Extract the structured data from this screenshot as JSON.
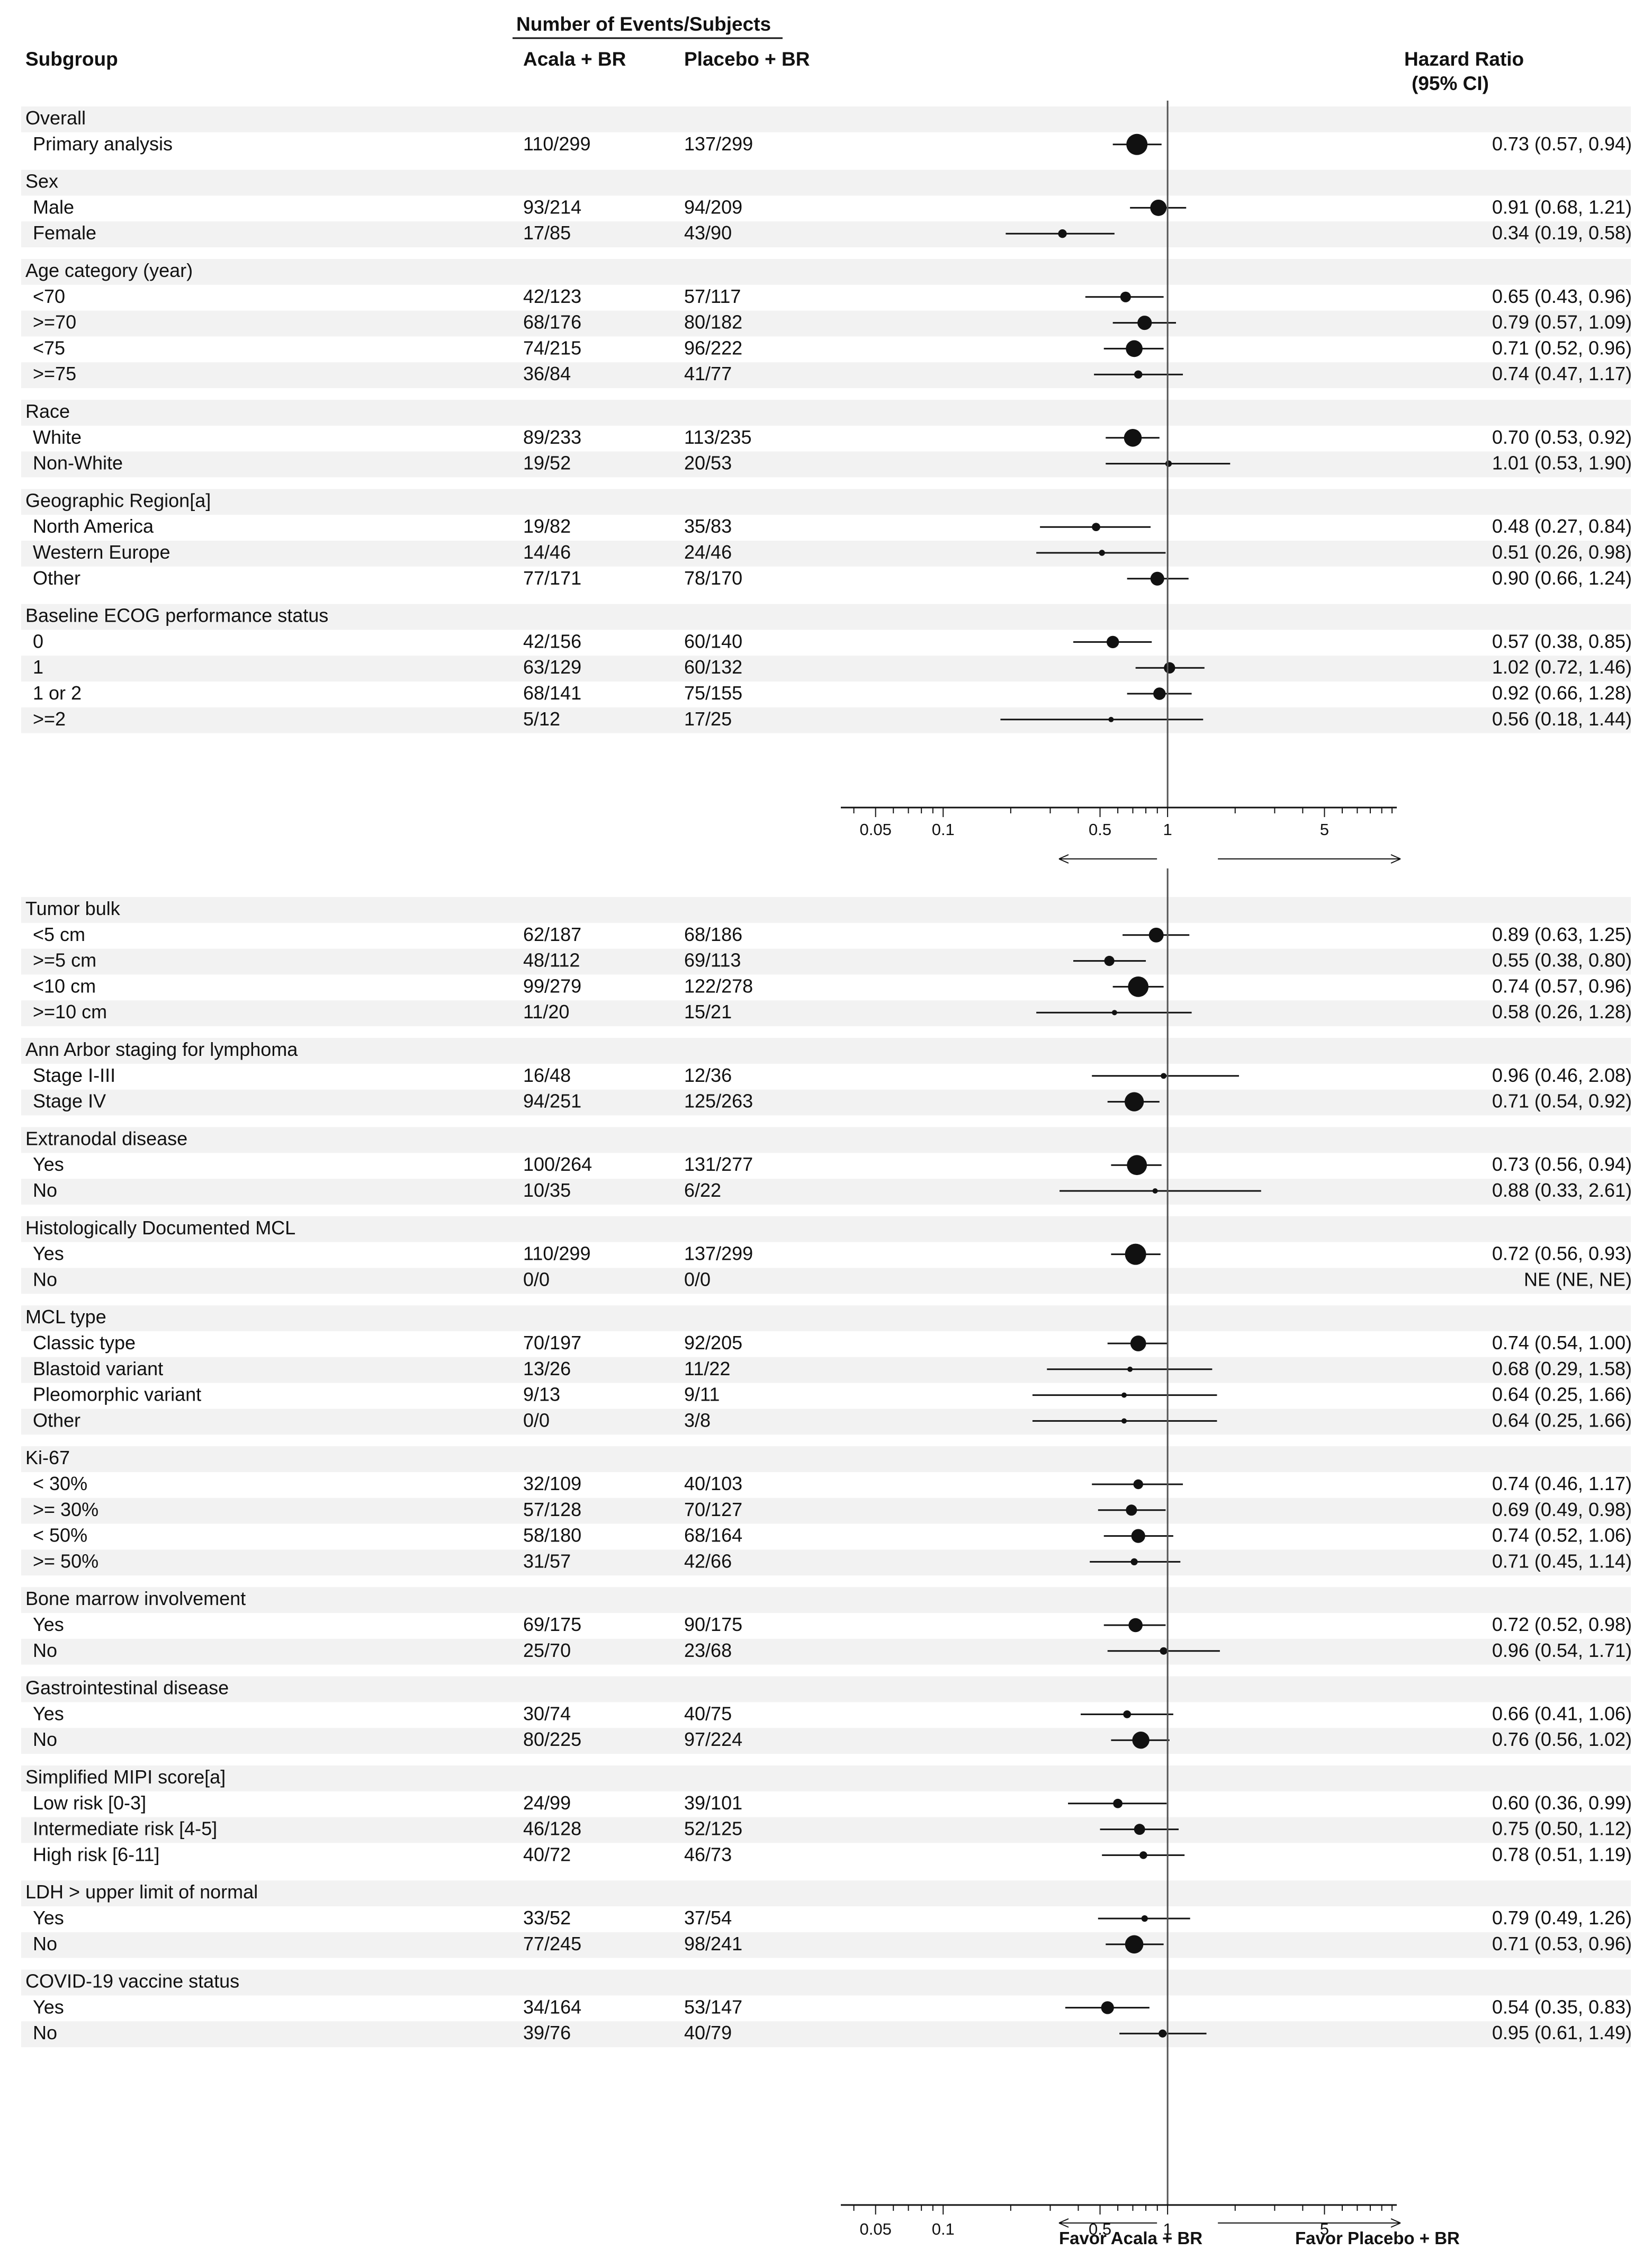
{
  "headers": {
    "subgroup": "Subgroup",
    "events": "Number of Events/Subjects",
    "arm1": "Acala + BR",
    "arm2": "Placebo + BR",
    "hr": "Hazard Ratio",
    "ci": "(95% CI)"
  },
  "favor": {
    "left": "Favor Acala + BR",
    "right": "Favor Placebo + BR"
  },
  "chart_data": {
    "type": "forest",
    "x_scale": "log",
    "xlim": [
      0.035,
      10.5
    ],
    "reference_line": 1,
    "tick_values": [
      0.05,
      0.1,
      0.5,
      1,
      5
    ],
    "tick_labels": [
      "0.05",
      "0.1",
      "0.5",
      "1",
      "5"
    ],
    "panels": [
      {
        "groups": [
          {
            "label": "Overall",
            "rows": [
              {
                "label": "Primary analysis",
                "arm1": "110/299",
                "arm2": "137/299",
                "hr": 0.73,
                "lo": 0.57,
                "hi": 0.94,
                "text": "0.73 (0.57, 0.94)"
              }
            ]
          },
          {
            "label": "Sex",
            "rows": [
              {
                "label": "Male",
                "arm1": "93/214",
                "arm2": "94/209",
                "hr": 0.91,
                "lo": 0.68,
                "hi": 1.21,
                "text": "0.91 (0.68, 1.21)"
              },
              {
                "label": "Female",
                "arm1": "17/85",
                "arm2": "43/90",
                "hr": 0.34,
                "lo": 0.19,
                "hi": 0.58,
                "text": "0.34 (0.19, 0.58)"
              }
            ]
          },
          {
            "label": "Age category (year)",
            "rows": [
              {
                "label": "<70",
                "arm1": "42/123",
                "arm2": "57/117",
                "hr": 0.65,
                "lo": 0.43,
                "hi": 0.96,
                "text": "0.65 (0.43, 0.96)"
              },
              {
                "label": ">=70",
                "arm1": "68/176",
                "arm2": "80/182",
                "hr": 0.79,
                "lo": 0.57,
                "hi": 1.09,
                "text": "0.79 (0.57, 1.09)"
              },
              {
                "label": "<75",
                "arm1": "74/215",
                "arm2": "96/222",
                "hr": 0.71,
                "lo": 0.52,
                "hi": 0.96,
                "text": "0.71 (0.52, 0.96)"
              },
              {
                "label": ">=75",
                "arm1": "36/84",
                "arm2": "41/77",
                "hr": 0.74,
                "lo": 0.47,
                "hi": 1.17,
                "text": "0.74 (0.47, 1.17)"
              }
            ]
          },
          {
            "label": "Race",
            "rows": [
              {
                "label": "White",
                "arm1": "89/233",
                "arm2": "113/235",
                "hr": 0.7,
                "lo": 0.53,
                "hi": 0.92,
                "text": "0.70 (0.53, 0.92)"
              },
              {
                "label": "Non-White",
                "arm1": "19/52",
                "arm2": "20/53",
                "hr": 1.01,
                "lo": 0.53,
                "hi": 1.9,
                "text": "1.01 (0.53, 1.90)"
              }
            ]
          },
          {
            "label": "Geographic Region[a]",
            "rows": [
              {
                "label": "North America",
                "arm1": "19/82",
                "arm2": "35/83",
                "hr": 0.48,
                "lo": 0.27,
                "hi": 0.84,
                "text": "0.48 (0.27, 0.84)"
              },
              {
                "label": "Western Europe",
                "arm1": "14/46",
                "arm2": "24/46",
                "hr": 0.51,
                "lo": 0.26,
                "hi": 0.98,
                "text": "0.51 (0.26, 0.98)"
              },
              {
                "label": "Other",
                "arm1": "77/171",
                "arm2": "78/170",
                "hr": 0.9,
                "lo": 0.66,
                "hi": 1.24,
                "text": "0.90 (0.66, 1.24)"
              }
            ]
          },
          {
            "label": "Baseline ECOG performance status",
            "rows": [
              {
                "label": "0",
                "arm1": "42/156",
                "arm2": "60/140",
                "hr": 0.57,
                "lo": 0.38,
                "hi": 0.85,
                "text": "0.57 (0.38, 0.85)"
              },
              {
                "label": "1",
                "arm1": "63/129",
                "arm2": "60/132",
                "hr": 1.02,
                "lo": 0.72,
                "hi": 1.46,
                "text": "1.02 (0.72, 1.46)"
              },
              {
                "label": "1 or 2",
                "arm1": "68/141",
                "arm2": "75/155",
                "hr": 0.92,
                "lo": 0.66,
                "hi": 1.28,
                "text": "0.92 (0.66, 1.28)"
              },
              {
                "label": ">=2",
                "arm1": "5/12",
                "arm2": "17/25",
                "hr": 0.56,
                "lo": 0.18,
                "hi": 1.44,
                "text": "0.56 (0.18, 1.44)"
              }
            ]
          }
        ]
      },
      {
        "groups": [
          {
            "label": "Tumor bulk",
            "rows": [
              {
                "label": "<5 cm",
                "arm1": "62/187",
                "arm2": "68/186",
                "hr": 0.89,
                "lo": 0.63,
                "hi": 1.25,
                "text": "0.89 (0.63, 1.25)"
              },
              {
                "label": ">=5 cm",
                "arm1": "48/112",
                "arm2": "69/113",
                "hr": 0.55,
                "lo": 0.38,
                "hi": 0.8,
                "text": "0.55 (0.38, 0.80)"
              },
              {
                "label": "<10 cm",
                "arm1": "99/279",
                "arm2": "122/278",
                "hr": 0.74,
                "lo": 0.57,
                "hi": 0.96,
                "text": "0.74 (0.57, 0.96)"
              },
              {
                "label": ">=10 cm",
                "arm1": "11/20",
                "arm2": "15/21",
                "hr": 0.58,
                "lo": 0.26,
                "hi": 1.28,
                "text": "0.58 (0.26, 1.28)"
              }
            ]
          },
          {
            "label": "Ann Arbor staging for lymphoma",
            "rows": [
              {
                "label": "Stage I-III",
                "arm1": "16/48",
                "arm2": "12/36",
                "hr": 0.96,
                "lo": 0.46,
                "hi": 2.08,
                "text": "0.96 (0.46, 2.08)"
              },
              {
                "label": "Stage IV",
                "arm1": "94/251",
                "arm2": "125/263",
                "hr": 0.71,
                "lo": 0.54,
                "hi": 0.92,
                "text": "0.71 (0.54, 0.92)"
              }
            ]
          },
          {
            "label": "Extranodal disease",
            "rows": [
              {
                "label": "Yes",
                "arm1": "100/264",
                "arm2": "131/277",
                "hr": 0.73,
                "lo": 0.56,
                "hi": 0.94,
                "text": "0.73 (0.56, 0.94)"
              },
              {
                "label": "No",
                "arm1": "10/35",
                "arm2": "6/22",
                "hr": 0.88,
                "lo": 0.33,
                "hi": 2.61,
                "text": "0.88 (0.33, 2.61)"
              }
            ]
          },
          {
            "label": "Histologically Documented MCL",
            "rows": [
              {
                "label": "Yes",
                "arm1": "110/299",
                "arm2": "137/299",
                "hr": 0.72,
                "lo": 0.56,
                "hi": 0.93,
                "text": "0.72 (0.56, 0.93)"
              },
              {
                "label": "No",
                "arm1": "0/0",
                "arm2": "0/0",
                "hr": null,
                "lo": null,
                "hi": null,
                "text": "NE (NE, NE)"
              }
            ]
          },
          {
            "label": "MCL type",
            "rows": [
              {
                "label": "Classic type",
                "arm1": "70/197",
                "arm2": "92/205",
                "hr": 0.74,
                "lo": 0.54,
                "hi": 1.0,
                "text": "0.74 (0.54, 1.00)"
              },
              {
                "label": "Blastoid variant",
                "arm1": "13/26",
                "arm2": "11/22",
                "hr": 0.68,
                "lo": 0.29,
                "hi": 1.58,
                "text": "0.68 (0.29, 1.58)"
              },
              {
                "label": "Pleomorphic variant",
                "arm1": "9/13",
                "arm2": "9/11",
                "hr": 0.64,
                "lo": 0.25,
                "hi": 1.66,
                "text": "0.64 (0.25, 1.66)"
              },
              {
                "label": "Other",
                "arm1": "0/0",
                "arm2": "3/8",
                "hr": 0.64,
                "lo": 0.25,
                "hi": 1.66,
                "text": "0.64 (0.25, 1.66)"
              }
            ]
          },
          {
            "label": "Ki-67",
            "rows": [
              {
                "label": "< 30%",
                "arm1": "32/109",
                "arm2": "40/103",
                "hr": 0.74,
                "lo": 0.46,
                "hi": 1.17,
                "text": "0.74 (0.46, 1.17)"
              },
              {
                "label": ">= 30%",
                "arm1": "57/128",
                "arm2": "70/127",
                "hr": 0.69,
                "lo": 0.49,
                "hi": 0.98,
                "text": "0.69 (0.49, 0.98)"
              },
              {
                "label": "< 50%",
                "arm1": "58/180",
                "arm2": "68/164",
                "hr": 0.74,
                "lo": 0.52,
                "hi": 1.06,
                "text": "0.74 (0.52, 1.06)"
              },
              {
                "label": ">= 50%",
                "arm1": "31/57",
                "arm2": "42/66",
                "hr": 0.71,
                "lo": 0.45,
                "hi": 1.14,
                "text": "0.71 (0.45, 1.14)"
              }
            ]
          },
          {
            "label": "Bone marrow involvement",
            "rows": [
              {
                "label": "Yes",
                "arm1": "69/175",
                "arm2": "90/175",
                "hr": 0.72,
                "lo": 0.52,
                "hi": 0.98,
                "text": "0.72 (0.52, 0.98)"
              },
              {
                "label": "No",
                "arm1": "25/70",
                "arm2": "23/68",
                "hr": 0.96,
                "lo": 0.54,
                "hi": 1.71,
                "text": "0.96 (0.54, 1.71)"
              }
            ]
          },
          {
            "label": "Gastrointestinal disease",
            "rows": [
              {
                "label": "Yes",
                "arm1": "30/74",
                "arm2": "40/75",
                "hr": 0.66,
                "lo": 0.41,
                "hi": 1.06,
                "text": "0.66 (0.41, 1.06)"
              },
              {
                "label": "No",
                "arm1": "80/225",
                "arm2": "97/224",
                "hr": 0.76,
                "lo": 0.56,
                "hi": 1.02,
                "text": "0.76 (0.56, 1.02)"
              }
            ]
          },
          {
            "label": "Simplified MIPI score[a]",
            "rows": [
              {
                "label": "Low risk [0-3]",
                "arm1": "24/99",
                "arm2": "39/101",
                "hr": 0.6,
                "lo": 0.36,
                "hi": 0.99,
                "text": "0.60 (0.36, 0.99)"
              },
              {
                "label": "Intermediate risk [4-5]",
                "arm1": "46/128",
                "arm2": "52/125",
                "hr": 0.75,
                "lo": 0.5,
                "hi": 1.12,
                "text": "0.75 (0.50, 1.12)"
              },
              {
                "label": "High risk [6-11]",
                "arm1": "40/72",
                "arm2": "46/73",
                "hr": 0.78,
                "lo": 0.51,
                "hi": 1.19,
                "text": "0.78 (0.51, 1.19)"
              }
            ]
          },
          {
            "label": "LDH > upper limit of normal",
            "rows": [
              {
                "label": "Yes",
                "arm1": "33/52",
                "arm2": "37/54",
                "hr": 0.79,
                "lo": 0.49,
                "hi": 1.26,
                "text": "0.79 (0.49, 1.26)"
              },
              {
                "label": "No",
                "arm1": "77/245",
                "arm2": "98/241",
                "hr": 0.71,
                "lo": 0.53,
                "hi": 0.96,
                "text": "0.71 (0.53, 0.96)"
              }
            ]
          },
          {
            "label": "COVID-19 vaccine status",
            "rows": [
              {
                "label": "Yes",
                "arm1": "34/164",
                "arm2": "53/147",
                "hr": 0.54,
                "lo": 0.35,
                "hi": 0.83,
                "text": "0.54 (0.35, 0.83)"
              },
              {
                "label": "No",
                "arm1": "39/76",
                "arm2": "40/79",
                "hr": 0.95,
                "lo": 0.61,
                "hi": 1.49,
                "text": "0.95 (0.61, 1.49)"
              }
            ]
          }
        ]
      }
    ]
  }
}
